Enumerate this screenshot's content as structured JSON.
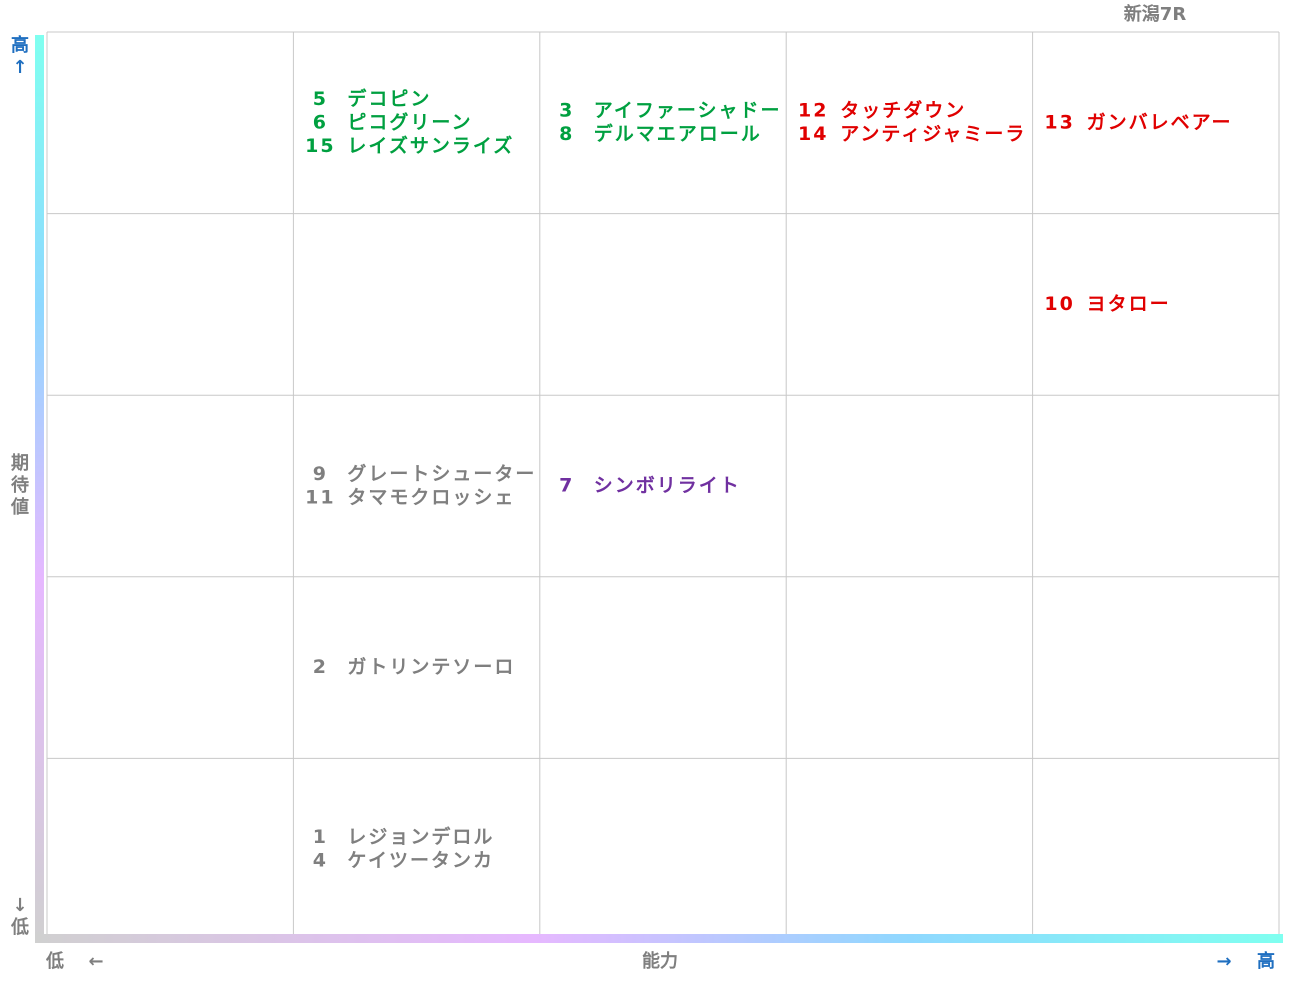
{
  "header": {
    "title": "新潟7R"
  },
  "y_axis": {
    "top_lines": [
      "高",
      "↑"
    ],
    "label_lines": [
      "期",
      "待",
      "値"
    ],
    "bottom_lines": [
      "↓",
      "低"
    ]
  },
  "x_axis": {
    "low": "低",
    "left_arrow": "←",
    "label": "能力",
    "right_arrow": "→",
    "high": "高"
  },
  "grid": {
    "rows": [
      [
        null,
        {
          "color": "#00a040",
          "entries": [
            {
              "number": "5",
              "name": "デコピン"
            },
            {
              "number": "6",
              "name": "ピコグリーン"
            },
            {
              "number": "15",
              "name": "レイズサンライズ"
            }
          ]
        },
        {
          "color": "#00a040",
          "entries": [
            {
              "number": "3",
              "name": "アイファーシャドー"
            },
            {
              "number": "8",
              "name": "デルマエアロール"
            }
          ]
        },
        {
          "color": "#e00000",
          "entries": [
            {
              "number": "12",
              "name": "タッチダウン"
            },
            {
              "number": "14",
              "name": "アンティジャミーラ"
            }
          ]
        },
        {
          "color": "#e00000",
          "entries": [
            {
              "number": "13",
              "name": "ガンバレベアー"
            }
          ]
        }
      ],
      [
        null,
        null,
        null,
        null,
        {
          "color": "#e00000",
          "entries": [
            {
              "number": "10",
              "name": "ヨタロー"
            }
          ]
        }
      ],
      [
        null,
        {
          "color": "#7f7f7f",
          "entries": [
            {
              "number": "9",
              "name": "グレートシューター"
            },
            {
              "number": "11",
              "name": "タマモクロッシェ"
            }
          ]
        },
        {
          "color": "#7030a0",
          "entries": [
            {
              "number": "7",
              "name": "シンボリライト"
            }
          ]
        },
        null,
        null
      ],
      [
        null,
        {
          "color": "#7f7f7f",
          "entries": [
            {
              "number": "2",
              "name": "ガトリンテソーロ"
            }
          ]
        },
        null,
        null,
        null
      ],
      [
        null,
        {
          "color": "#7f7f7f",
          "entries": [
            {
              "number": "1",
              "name": "レジョンデロル"
            },
            {
              "number": "4",
              "name": "ケイツータンカ"
            }
          ]
        },
        null,
        null,
        null
      ]
    ]
  }
}
